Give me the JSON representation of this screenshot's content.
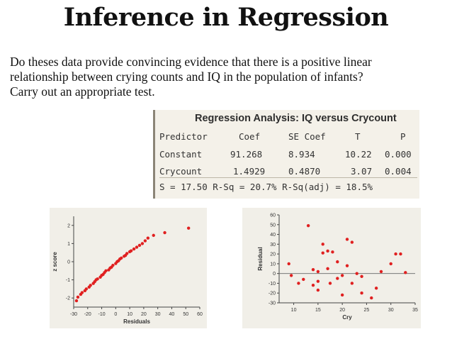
{
  "title": "Inference in Regression",
  "question": {
    "line1": "Do theses data provide convincing evidence that there is a positive linear",
    "line2": "relationship between crying counts and IQ in the population of infants?",
    "line3": "Carry out an appropriate test."
  },
  "regression": {
    "heading": "Regression Analysis: IQ versus Crycount",
    "header": {
      "predictor": "Predictor",
      "coef": "Coef",
      "se": "SE Coef",
      "t": "T",
      "p": "P"
    },
    "rows": [
      {
        "predictor": "Constant",
        "coef": "91.268",
        "se": "8.934",
        "t": "10.22",
        "p": "0.000"
      },
      {
        "predictor": "Crycount",
        "coef": "1.4929",
        "se": "0.4870",
        "t": "3.07",
        "p": "0.004"
      }
    ],
    "summary": "S = 17.50   R-Sq = 20.7%   R-Sq(adj) = 18.5%"
  },
  "colors": {
    "points": "#e02020",
    "panel": "#f1efe8",
    "axis": "#444444"
  },
  "chart_data": [
    {
      "type": "scatter",
      "xlabel": "Residuals",
      "ylabel": "z score",
      "xticks": [
        "-30",
        "-20",
        "-10",
        "0",
        "10",
        "20",
        "30",
        "40",
        "50",
        "60"
      ],
      "yticks": [
        "2",
        "1",
        "0",
        "-1",
        "-2"
      ],
      "xlim": [
        -30,
        60
      ],
      "ylim": [
        -2.5,
        2.5
      ],
      "points": [
        [
          -28,
          -2.15
        ],
        [
          -27,
          -1.95
        ],
        [
          -25,
          -1.8
        ],
        [
          -24,
          -1.7
        ],
        [
          -22,
          -1.6
        ],
        [
          -21,
          -1.5
        ],
        [
          -19,
          -1.4
        ],
        [
          -18,
          -1.3
        ],
        [
          -16,
          -1.2
        ],
        [
          -15,
          -1.1
        ],
        [
          -14,
          -1.0
        ],
        [
          -13,
          -0.95
        ],
        [
          -11,
          -0.85
        ],
        [
          -10,
          -0.75
        ],
        [
          -9,
          -0.7
        ],
        [
          -8,
          -0.6
        ],
        [
          -7,
          -0.5
        ],
        [
          -5,
          -0.45
        ],
        [
          -4,
          -0.35
        ],
        [
          -3,
          -0.3
        ],
        [
          -2,
          -0.2
        ],
        [
          0,
          -0.1
        ],
        [
          1,
          0.0
        ],
        [
          2,
          0.05
        ],
        [
          3,
          0.15
        ],
        [
          4,
          0.2
        ],
        [
          6,
          0.3
        ],
        [
          7,
          0.35
        ],
        [
          8,
          0.45
        ],
        [
          10,
          0.55
        ],
        [
          11,
          0.6
        ],
        [
          13,
          0.7
        ],
        [
          15,
          0.8
        ],
        [
          17,
          0.9
        ],
        [
          19,
          1.0
        ],
        [
          21,
          1.15
        ],
        [
          23,
          1.3
        ],
        [
          27,
          1.45
        ],
        [
          35,
          1.6
        ],
        [
          52,
          1.85
        ]
      ]
    },
    {
      "type": "scatter",
      "xlabel": "Cry",
      "ylabel": "Residual",
      "xticks": [
        "10",
        "15",
        "20",
        "25",
        "30",
        "35"
      ],
      "yticks": [
        "60",
        "50",
        "40",
        "30",
        "20",
        "10",
        "0",
        "-10",
        "-20",
        "-30"
      ],
      "xlim": [
        7,
        35
      ],
      "ylim": [
        -30,
        60
      ],
      "points": [
        [
          9,
          10
        ],
        [
          9.5,
          -2
        ],
        [
          11,
          -10
        ],
        [
          12,
          -6
        ],
        [
          13,
          49
        ],
        [
          14,
          -12
        ],
        [
          14,
          4
        ],
        [
          15,
          -8
        ],
        [
          15,
          -17
        ],
        [
          16,
          21
        ],
        [
          17,
          5
        ],
        [
          17,
          23
        ],
        [
          17.5,
          -10
        ],
        [
          18,
          22
        ],
        [
          19,
          12
        ],
        [
          20,
          -2
        ],
        [
          20,
          -22
        ],
        [
          21,
          35
        ],
        [
          21,
          8
        ],
        [
          22,
          32
        ],
        [
          22,
          -10
        ],
        [
          23,
          0
        ],
        [
          24,
          -3
        ],
        [
          24,
          -20
        ],
        [
          26,
          -25
        ],
        [
          27,
          -15
        ],
        [
          28,
          2
        ],
        [
          30,
          10
        ],
        [
          31,
          20
        ],
        [
          32,
          20
        ],
        [
          33,
          1
        ],
        [
          15,
          2
        ],
        [
          16,
          30
        ],
        [
          19,
          -5
        ]
      ]
    }
  ]
}
